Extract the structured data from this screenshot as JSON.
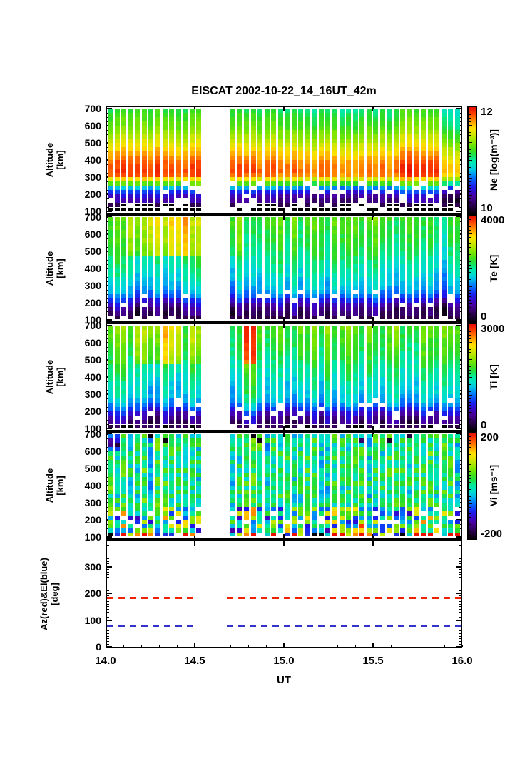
{
  "title": "EISCAT 2002-10-22_14_16UT_42m",
  "x_axis": {
    "label": "UT",
    "min": 14.0,
    "max": 16.0,
    "tick_values": [
      14.0,
      14.5,
      15.0,
      15.5,
      16.0
    ],
    "tick_labels": [
      "14.0",
      "14.5",
      "15.0",
      "15.5",
      "16.0"
    ],
    "minor_tick_step": 0.1
  },
  "chart_data": {
    "type": "heatmap",
    "title": "EISCAT 2002-10-22_14_16UT_42m",
    "description": "Five stacked time-altitude panels of EISCAT 42m radar data, 14-16 UT with a data gap near 14.5-14.7 UT",
    "time_columns": {
      "count": 52,
      "missing_columns": [
        14,
        15,
        16,
        17
      ],
      "ut_start": 14.0,
      "ut_end": 16.0
    },
    "altitude_rows": {
      "count": 24,
      "top_km": 700,
      "bottom_km": 100,
      "step_km": 25
    },
    "altitude_axis": {
      "label_lines": [
        "Altitude",
        "[km]"
      ],
      "tick_values": [
        100,
        200,
        300,
        400,
        500,
        600,
        700
      ]
    },
    "colormap_stops": [
      {
        "v": 0.0,
        "hex": "#08000e"
      },
      {
        "v": 0.07,
        "hex": "#2d004b"
      },
      {
        "v": 0.16,
        "hex": "#4b00aa"
      },
      {
        "v": 0.24,
        "hex": "#1e14eb"
      },
      {
        "v": 0.33,
        "hex": "#006eff"
      },
      {
        "v": 0.42,
        "hex": "#00d7e1"
      },
      {
        "v": 0.5,
        "hex": "#00eba0"
      },
      {
        "v": 0.57,
        "hex": "#28dc28"
      },
      {
        "v": 0.65,
        "hex": "#78e600"
      },
      {
        "v": 0.74,
        "hex": "#d2e600"
      },
      {
        "v": 0.8,
        "hex": "#ffe100"
      },
      {
        "v": 0.87,
        "hex": "#ff9600"
      },
      {
        "v": 0.93,
        "hex": "#ff4600"
      },
      {
        "v": 1.0,
        "hex": "#e60a00"
      }
    ],
    "render_seed": 20021022,
    "panels": [
      {
        "name": "Ne",
        "colorbar": {
          "label": "Ne [log(m⁻³)]",
          "min": 10,
          "max": 12,
          "max_label": "12",
          "min_label": "10"
        },
        "profile_top_to_bottom": [
          11.05,
          11.08,
          11.12,
          11.16,
          11.2,
          11.26,
          11.32,
          11.38,
          11.45,
          11.52,
          11.6,
          11.66,
          11.72,
          11.76,
          11.78,
          11.74,
          11.5,
          11.15,
          10.7,
          10.45,
          10.3,
          10.22,
          10.15,
          10.05
        ],
        "column_add_runs": [
          [
            0,
            13,
            0.1
          ],
          [
            18,
            27,
            0.05
          ],
          [
            28,
            42,
            0.0
          ],
          [
            43,
            48,
            0.13
          ],
          [
            49,
            51,
            -0.12
          ]
        ],
        "column_top_add_runs": [],
        "column_variation": 0.05,
        "cell_noise": 0.035,
        "dash_row_colors": [
          "#000000"
        ],
        "extra_black_dash_row": true
      },
      {
        "name": "Te",
        "colorbar": {
          "label": "Te [K]",
          "min": 0,
          "max": 4000,
          "max_label": "4000",
          "min_label": "0"
        },
        "profile_top_to_bottom": [
          2350,
          2320,
          2290,
          2260,
          2230,
          2200,
          2160,
          2120,
          2080,
          2030,
          1980,
          1930,
          1870,
          1800,
          1720,
          1640,
          1560,
          1450,
          1250,
          950,
          650,
          480,
          380,
          280
        ],
        "column_add_runs": [
          [
            40,
            51,
            -180
          ]
        ],
        "column_top_add_runs": [
          [
            3,
            5,
            500
          ],
          [
            6,
            8,
            750
          ],
          [
            9,
            11,
            950
          ],
          [
            12,
            13,
            420
          ],
          [
            18,
            19,
            260
          ]
        ],
        "column_variation": 260,
        "cell_noise": 110,
        "dash_row_colors": [
          "#33004d",
          "#2a0040"
        ],
        "extra_black_dash_row": false
      },
      {
        "name": "Ti",
        "colorbar": {
          "label": "Ti [K]",
          "min": 0,
          "max": 3000,
          "max_label": "3000",
          "min_label": "0"
        },
        "profile_top_to_bottom": [
          1850,
          1830,
          1800,
          1780,
          1750,
          1720,
          1690,
          1650,
          1610,
          1570,
          1530,
          1480,
          1440,
          1400,
          1360,
          1320,
          1280,
          1200,
          1050,
          850,
          620,
          460,
          360,
          270
        ],
        "column_add_runs": [
          [
            20,
            21,
            180
          ]
        ],
        "column_top_add_runs": [
          [
            4,
            7,
            320
          ],
          [
            8,
            10,
            600
          ],
          [
            12,
            13,
            240
          ],
          [
            20,
            21,
            800
          ]
        ],
        "column_variation": 200,
        "cell_noise": 90,
        "dash_row_colors": [
          "#2a0040",
          "#000000",
          "#3a0060"
        ],
        "extra_black_dash_row": false
      },
      {
        "name": "Vi",
        "colorbar": {
          "label": "Vi [ms⁻¹]",
          "min": -200,
          "max": 200,
          "max_label": "200",
          "min_label": "-200"
        },
        "profile_top_to_bottom": [
          0,
          0,
          0,
          0,
          0,
          0,
          0,
          0,
          0,
          0,
          0,
          0,
          0,
          0,
          0,
          0,
          0,
          0,
          0,
          0,
          0,
          0,
          0,
          0
        ],
        "column_add_runs": [],
        "column_top_add_runs": [],
        "column_variation": 25,
        "cell_noise": 50,
        "bottom_noise": 130,
        "patches": [
          {
            "cols": [
              0,
              1
            ],
            "rows": [
              0,
              3
            ],
            "add": -130
          }
        ],
        "dash_row_colors": [
          "#ee1100",
          "#ff8800",
          "#00cccc",
          "#000000",
          "#2233dd",
          "#bbee00",
          "#ee1100"
        ],
        "extra_black_dash_row": false
      }
    ],
    "azel_panel": {
      "ylabel_lines": [
        "Az(red)&El(blue)",
        "[deg]"
      ],
      "ylim": [
        0,
        390
      ],
      "ytick_values": [
        0,
        100,
        200,
        300
      ],
      "ytick_labels": [
        "0",
        "100",
        "200",
        "300"
      ],
      "az_value_deg": 184,
      "el_value_deg": 78,
      "az_color": "#ee2200",
      "el_color": "#3333cc",
      "line_style": "dashed",
      "line_segments_ut": [
        [
          14.0,
          14.51
        ],
        [
          14.68,
          16.0
        ]
      ]
    }
  }
}
